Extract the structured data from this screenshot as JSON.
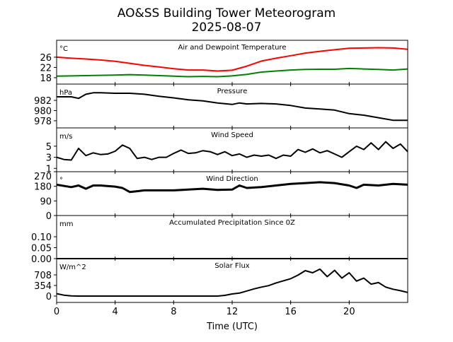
{
  "title": "AO&SS Building Tower Meteorogram",
  "subtitle": "2025-08-07",
  "chart_data": {
    "type": "line",
    "title": "AO&SS Building Tower Meteorogram",
    "subtitle": "2025-08-07",
    "xlabel": "Time (UTC)",
    "xlim": [
      0,
      24
    ],
    "xticks": [
      0,
      4,
      8,
      12,
      16,
      20
    ],
    "xtick_labels": [
      "0",
      "4",
      "8",
      "12",
      "16",
      "20"
    ],
    "grid": false,
    "panels": [
      {
        "title": "Air and Dewpoint Temperature",
        "unit": "°C",
        "ylim": [
          15.5,
          32.6
        ],
        "yticks": [
          18,
          22,
          26
        ],
        "ytick_labels": [
          "18",
          "22",
          "26"
        ],
        "series": [
          {
            "name": "Air Temperature",
            "color": "#ff0000",
            "points": [
              [
                0,
                26.0
              ],
              [
                1,
                25.6
              ],
              [
                2,
                25.3
              ],
              [
                3,
                24.9
              ],
              [
                4,
                24.4
              ],
              [
                5,
                23.6
              ],
              [
                6,
                22.8
              ],
              [
                7,
                22.2
              ],
              [
                8,
                21.5
              ],
              [
                9,
                21.0
              ],
              [
                10,
                21.0
              ],
              [
                11,
                20.6
              ],
              [
                12,
                20.9
              ],
              [
                13,
                22.5
              ],
              [
                14,
                24.5
              ],
              [
                15,
                25.6
              ],
              [
                16,
                26.6
              ],
              [
                17,
                27.6
              ],
              [
                18,
                28.3
              ],
              [
                19,
                28.9
              ],
              [
                20,
                29.5
              ],
              [
                21,
                29.6
              ],
              [
                22,
                29.7
              ],
              [
                23,
                29.6
              ],
              [
                24,
                29.1
              ]
            ]
          },
          {
            "name": "Dewpoint",
            "color": "#008000",
            "points": [
              [
                0,
                18.6
              ],
              [
                2,
                18.8
              ],
              [
                4,
                19.0
              ],
              [
                5,
                19.2
              ],
              [
                6,
                19.0
              ],
              [
                8,
                18.6
              ],
              [
                9,
                18.4
              ],
              [
                10,
                18.5
              ],
              [
                11,
                18.4
              ],
              [
                12,
                18.7
              ],
              [
                13,
                19.3
              ],
              [
                14,
                20.2
              ],
              [
                15,
                20.6
              ],
              [
                16,
                21.0
              ],
              [
                17,
                21.2
              ],
              [
                18,
                21.3
              ],
              [
                19,
                21.3
              ],
              [
                20,
                21.6
              ],
              [
                21,
                21.4
              ],
              [
                22,
                21.2
              ],
              [
                23,
                21.0
              ],
              [
                24,
                21.4
              ]
            ]
          }
        ]
      },
      {
        "title": "Pressure",
        "unit": "hPa",
        "ylim": [
          976.6,
          985.2
        ],
        "yticks": [
          978,
          980,
          982
        ],
        "ytick_labels": [
          "978",
          "980",
          "982"
        ],
        "series": [
          {
            "name": "Pressure",
            "color": "#000000",
            "points": [
              [
                0,
                982.7
              ],
              [
                1,
                982.7
              ],
              [
                1.5,
                982.4
              ],
              [
                2,
                983.2
              ],
              [
                2.5,
                983.5
              ],
              [
                3,
                983.5
              ],
              [
                4,
                983.4
              ],
              [
                5,
                983.4
              ],
              [
                6,
                983.2
              ],
              [
                7,
                982.8
              ],
              [
                8,
                982.5
              ],
              [
                9,
                982.1
              ],
              [
                10,
                981.9
              ],
              [
                11,
                981.5
              ],
              [
                12,
                981.2
              ],
              [
                12.5,
                981.5
              ],
              [
                13,
                981.3
              ],
              [
                14,
                981.4
              ],
              [
                15,
                981.3
              ],
              [
                16,
                981.0
              ],
              [
                17,
                980.5
              ],
              [
                18,
                980.3
              ],
              [
                19,
                980.1
              ],
              [
                20,
                979.4
              ],
              [
                21,
                979.1
              ],
              [
                22,
                978.6
              ],
              [
                23,
                978.1
              ],
              [
                24,
                978.1
              ]
            ]
          }
        ]
      },
      {
        "title": "Wind Speed",
        "unit": "m/s",
        "ylim": [
          0.4,
          8.3
        ],
        "yticks": [
          1,
          3,
          5
        ],
        "ytick_labels": [
          "1",
          "3",
          "5"
        ],
        "series": [
          {
            "name": "Wind Speed",
            "color": "#000000",
            "points": [
              [
                0,
                3.0
              ],
              [
                0.5,
                2.6
              ],
              [
                1,
                2.5
              ],
              [
                1.5,
                4.6
              ],
              [
                2,
                3.3
              ],
              [
                2.5,
                3.8
              ],
              [
                3,
                3.5
              ],
              [
                3.5,
                3.6
              ],
              [
                4,
                4.1
              ],
              [
                4.5,
                5.2
              ],
              [
                5,
                4.6
              ],
              [
                5.5,
                2.8
              ],
              [
                6,
                3.0
              ],
              [
                6.5,
                2.6
              ],
              [
                7,
                3.0
              ],
              [
                7.5,
                3.0
              ],
              [
                8,
                3.7
              ],
              [
                8.5,
                4.3
              ],
              [
                9,
                3.7
              ],
              [
                9.5,
                3.8
              ],
              [
                10,
                4.2
              ],
              [
                10.5,
                4.0
              ],
              [
                11,
                3.5
              ],
              [
                11.5,
                4.0
              ],
              [
                12,
                3.3
              ],
              [
                12.5,
                3.6
              ],
              [
                13,
                3.0
              ],
              [
                13.5,
                3.4
              ],
              [
                14,
                3.2
              ],
              [
                14.5,
                3.4
              ],
              [
                15,
                2.8
              ],
              [
                15.5,
                3.4
              ],
              [
                16,
                3.2
              ],
              [
                16.5,
                4.4
              ],
              [
                17,
                3.9
              ],
              [
                17.5,
                4.5
              ],
              [
                18,
                3.8
              ],
              [
                18.5,
                4.2
              ],
              [
                19,
                3.6
              ],
              [
                19.5,
                3.0
              ],
              [
                20,
                4.0
              ],
              [
                20.5,
                5.0
              ],
              [
                21,
                4.4
              ],
              [
                21.5,
                5.6
              ],
              [
                22,
                4.4
              ],
              [
                22.5,
                5.8
              ],
              [
                23,
                4.6
              ],
              [
                23.5,
                5.4
              ],
              [
                24,
                4.0
              ]
            ]
          }
        ]
      },
      {
        "title": "Wind Direction",
        "unit": "°",
        "ylim": [
          0,
          270
        ],
        "yticks": [
          0,
          90,
          180,
          270
        ],
        "ytick_labels": [
          "0",
          "90",
          "180",
          "270"
        ],
        "series": [
          {
            "name": "Wind Direction",
            "color": "#000000",
            "points": [
              [
                0,
                190
              ],
              [
                1,
                175
              ],
              [
                1.5,
                185
              ],
              [
                2,
                165
              ],
              [
                2.5,
                185
              ],
              [
                3,
                185
              ],
              [
                4,
                178
              ],
              [
                4.5,
                170
              ],
              [
                5,
                145
              ],
              [
                5.5,
                150
              ],
              [
                6,
                155
              ],
              [
                8,
                155
              ],
              [
                9,
                160
              ],
              [
                10,
                165
              ],
              [
                11,
                158
              ],
              [
                12,
                160
              ],
              [
                12.5,
                185
              ],
              [
                13,
                170
              ],
              [
                14,
                175
              ],
              [
                15,
                185
              ],
              [
                16,
                195
              ],
              [
                17,
                200
              ],
              [
                18,
                205
              ],
              [
                19,
                200
              ],
              [
                20,
                185
              ],
              [
                20.5,
                170
              ],
              [
                21,
                190
              ],
              [
                22,
                185
              ],
              [
                23,
                195
              ],
              [
                24,
                190
              ]
            ]
          }
        ]
      },
      {
        "title": "Accumulated Precipitation Since 0Z",
        "unit": "mm",
        "ylim": [
          0,
          0.197
        ],
        "yticks": [
          0,
          0.05,
          0.1
        ],
        "ytick_labels": [
          "0.00",
          "0.05",
          "0.10"
        ],
        "series": [
          {
            "name": "Accumulated Precipitation",
            "color": "#000000",
            "points": [
              [
                0,
                0
              ],
              [
                24,
                0
              ]
            ]
          }
        ]
      },
      {
        "title": "Solar Flux",
        "unit": "W/m^2",
        "ylim": [
          -212,
          1251
        ],
        "yticks": [
          0,
          354,
          708
        ],
        "ytick_labels": [
          "0",
          "354",
          "708"
        ],
        "series": [
          {
            "name": "Solar Flux",
            "color": "#000000",
            "points": [
              [
                0,
                80
              ],
              [
                0.5,
                30
              ],
              [
                1,
                5
              ],
              [
                1.5,
                0
              ],
              [
                11,
                0
              ],
              [
                11.5,
                25
              ],
              [
                12,
                70
              ],
              [
                12.5,
                100
              ],
              [
                13,
                170
              ],
              [
                13.5,
                240
              ],
              [
                14,
                300
              ],
              [
                14.5,
                350
              ],
              [
                15,
                440
              ],
              [
                15.5,
                510
              ],
              [
                16,
                580
              ],
              [
                16.5,
                700
              ],
              [
                17,
                850
              ],
              [
                17.5,
                780
              ],
              [
                18,
                900
              ],
              [
                18.5,
                650
              ],
              [
                19,
                860
              ],
              [
                19.5,
                600
              ],
              [
                20,
                780
              ],
              [
                20.5,
                500
              ],
              [
                21,
                600
              ],
              [
                21.5,
                400
              ],
              [
                22,
                450
              ],
              [
                22.5,
                300
              ],
              [
                23,
                230
              ],
              [
                23.5,
                180
              ],
              [
                24,
                120
              ]
            ]
          }
        ]
      }
    ]
  }
}
